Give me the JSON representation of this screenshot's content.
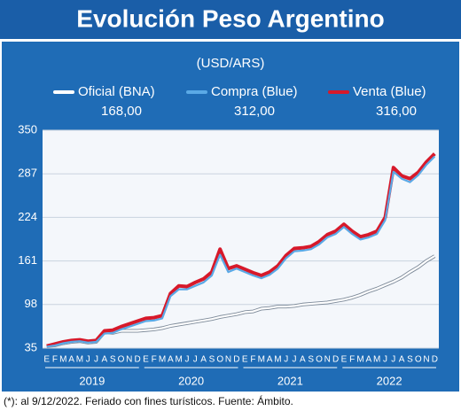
{
  "chart_data": {
    "type": "line",
    "title": "Evolución Peso Argentino",
    "subtitle": "(USD/ARS)",
    "footnote": "(*): al 9/12/2022. Feriado con fines turísticos. Fuente: Ámbito.",
    "categories": [
      "E",
      "F",
      "M",
      "A",
      "M",
      "J",
      "J",
      "A",
      "S",
      "O",
      "N",
      "D",
      "E",
      "F",
      "M",
      "A",
      "M",
      "J",
      "J",
      "A",
      "S",
      "O",
      "N",
      "D",
      "E",
      "F",
      "M",
      "A",
      "M",
      "J",
      "J",
      "A",
      "S",
      "O",
      "N",
      "D",
      "E",
      "F",
      "M",
      "A",
      "M",
      "J",
      "J",
      "A",
      "S",
      "O",
      "N",
      "D"
    ],
    "years": [
      "2019",
      "2020",
      "2021",
      "2022"
    ],
    "series": [
      {
        "name": "Oficial (BNA)",
        "color": "#ffffff",
        "legend_value": "168,00",
        "values": [
          38,
          39,
          42,
          44,
          45,
          43,
          44,
          58,
          57,
          60,
          60,
          60,
          61,
          62,
          64,
          67,
          69,
          71,
          73,
          75,
          77,
          80,
          82,
          84,
          87,
          88,
          92,
          93,
          95,
          95,
          96,
          98,
          99,
          100,
          101,
          103,
          105,
          108,
          112,
          117,
          121,
          126,
          131,
          137,
          145,
          152,
          161,
          168
        ]
      },
      {
        "name": "Venta (Blue)",
        "color": "#d7192a",
        "legend_value": "316,00",
        "values": [
          38,
          41,
          44,
          46,
          47,
          45,
          46,
          60,
          61,
          66,
          70,
          74,
          78,
          79,
          82,
          114,
          125,
          124,
          130,
          135,
          145,
          178,
          150,
          154,
          149,
          144,
          140,
          145,
          154,
          169,
          179,
          180,
          182,
          189,
          199,
          204,
          214,
          204,
          196,
          199,
          204,
          224,
          296,
          284,
          280,
          289,
          304,
          316
        ]
      },
      {
        "name": "Compra (Blue)",
        "color": "#5aa9e6",
        "legend_value": "312,00",
        "values": [
          37,
          39,
          42,
          44,
          45,
          43,
          44,
          56,
          57,
          62,
          66,
          70,
          74,
          75,
          78,
          110,
          120,
          120,
          125,
          130,
          140,
          170,
          145,
          150,
          145,
          140,
          136,
          141,
          150,
          165,
          175,
          176,
          178,
          185,
          195,
          200,
          210,
          200,
          192,
          195,
          200,
          220,
          290,
          280,
          275,
          285,
          300,
          312
        ]
      }
    ],
    "ylim": [
      35,
      350
    ],
    "yticks": [
      35,
      98,
      161,
      224,
      287,
      350
    ],
    "grid": true
  }
}
